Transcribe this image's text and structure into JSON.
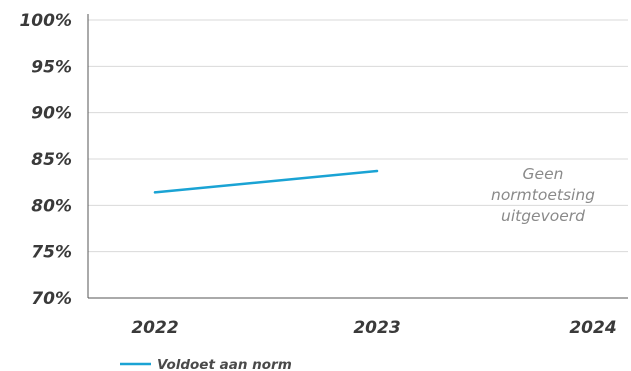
{
  "chart_data": {
    "type": "line",
    "categories": [
      "2022",
      "2023",
      "2024"
    ],
    "series": [
      {
        "name": "Voldoet aan norm",
        "values": [
          81.4,
          83.7,
          null
        ],
        "color": "#1aa3d4"
      }
    ],
    "ylim": [
      70,
      100
    ],
    "yticks": [
      70,
      75,
      80,
      85,
      90,
      95,
      100
    ],
    "ytick_labels": [
      "70%",
      "75%",
      "80%",
      "85%",
      "90%",
      "95%",
      "100%"
    ],
    "grid": true,
    "legend": "bottom-left",
    "annotation": {
      "lines": [
        "Geen",
        "normtoetsing",
        "uitgevoerd"
      ],
      "category": "2024"
    }
  }
}
